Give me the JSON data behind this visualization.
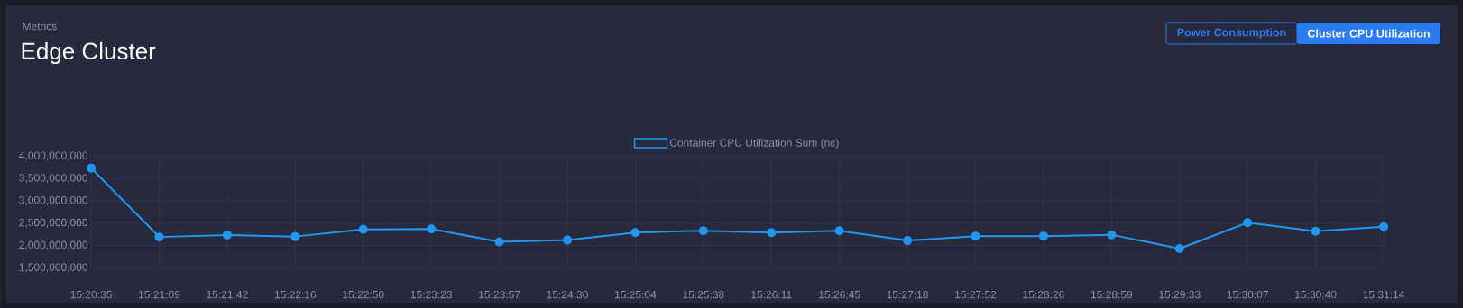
{
  "chart_data": {
    "type": "line",
    "subtitle": "Metrics",
    "title": "Edge Cluster",
    "annotations": [
      "Power Consumption",
      "Cluster CPU Utilization"
    ],
    "categories": [
      "15:20:35",
      "15:21:09",
      "15:21:42",
      "15:22:16",
      "15:22:50",
      "15:23:23",
      "15:23:57",
      "15:24:30",
      "15:25:04",
      "15:25:38",
      "15:26:11",
      "15:26:45",
      "15:27:18",
      "15:27:52",
      "15:28:26",
      "15:28:59",
      "15:29:33",
      "15:30:07",
      "15:30:40",
      "15:31:14"
    ],
    "series": [
      {
        "name": "Container CPU Utilization Sum (nc)",
        "color": "#2196f3",
        "values": [
          3730000000,
          2190000000,
          2235000000,
          2200000000,
          2360000000,
          2370000000,
          2080000000,
          2120000000,
          2290000000,
          2330000000,
          2290000000,
          2330000000,
          2110000000,
          2210000000,
          2210000000,
          2240000000,
          1930000000,
          2510000000,
          2320000000,
          2420000000
        ]
      }
    ],
    "ylim": [
      1500000000,
      4000000000
    ],
    "yticks": [
      {
        "value": 1500000000,
        "label": "1,500,000,000"
      },
      {
        "value": 2000000000,
        "label": "2,000,000,000"
      },
      {
        "value": 2500000000,
        "label": "2,500,000,000"
      },
      {
        "value": 3000000000,
        "label": "3,000,000,000"
      },
      {
        "value": 3500000000,
        "label": "3,500,000,000"
      },
      {
        "value": 4000000000,
        "label": "4,000,000,000"
      }
    ],
    "grid": true,
    "legend": "top",
    "marker": "circle",
    "line_style": "solid"
  }
}
